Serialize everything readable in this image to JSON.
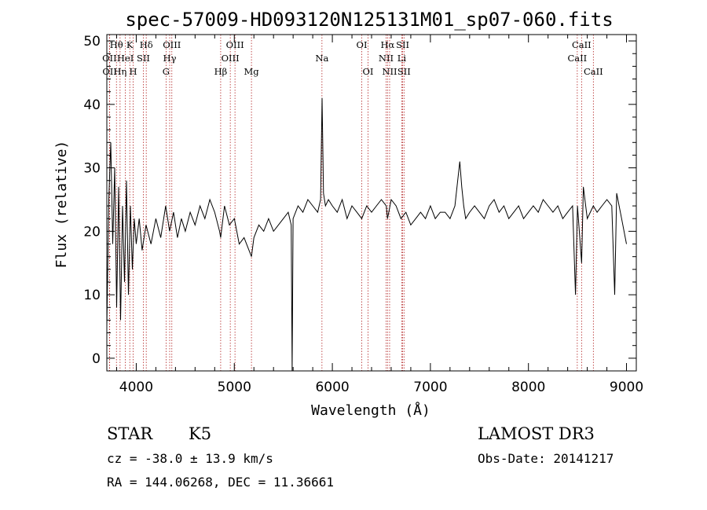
{
  "chart_data": {
    "type": "line",
    "title": "spec-57009-HD093120N125131M01_sp07-060.fits",
    "xlabel": "Wavelength (Å)",
    "ylabel": "Flux (relative)",
    "xlim": [
      3700,
      9100
    ],
    "ylim": [
      -2,
      51
    ],
    "xticks": [
      4000,
      5000,
      6000,
      7000,
      8000,
      9000
    ],
    "yticks": [
      0,
      10,
      20,
      30,
      40,
      50
    ],
    "series": [
      {
        "name": "flux",
        "x": [
          3700,
          3720,
          3740,
          3760,
          3780,
          3800,
          3820,
          3840,
          3860,
          3880,
          3900,
          3920,
          3940,
          3960,
          3980,
          4000,
          4030,
          4060,
          4100,
          4150,
          4200,
          4250,
          4300,
          4340,
          4380,
          4420,
          4460,
          4500,
          4550,
          4600,
          4650,
          4700,
          4750,
          4800,
          4850,
          4861,
          4900,
          4950,
          5000,
          5050,
          5100,
          5150,
          5175,
          5200,
          5250,
          5300,
          5350,
          5400,
          5450,
          5500,
          5550,
          5580,
          5590,
          5600,
          5650,
          5700,
          5750,
          5800,
          5850,
          5880,
          5895,
          5910,
          5930,
          5960,
          6000,
          6050,
          6100,
          6150,
          6200,
          6250,
          6300,
          6350,
          6400,
          6450,
          6500,
          6550,
          6563,
          6600,
          6650,
          6700,
          6750,
          6800,
          6850,
          6900,
          6950,
          7000,
          7050,
          7100,
          7150,
          7200,
          7250,
          7300,
          7320,
          7340,
          7360,
          7400,
          7450,
          7500,
          7550,
          7600,
          7650,
          7700,
          7750,
          7800,
          7850,
          7900,
          7950,
          8000,
          8050,
          8100,
          8150,
          8200,
          8250,
          8300,
          8350,
          8400,
          8450,
          8480,
          8500,
          8542,
          8560,
          8600,
          8662,
          8700,
          8750,
          8800,
          8850,
          8880,
          8900,
          8950,
          9000
        ],
        "y": [
          5,
          25,
          34,
          18,
          30,
          8,
          27,
          6,
          24,
          12,
          28,
          10,
          24,
          14,
          22,
          18,
          22,
          17,
          21,
          18,
          22,
          19,
          24,
          20,
          23,
          19,
          22,
          20,
          23,
          21,
          24,
          22,
          25,
          23,
          20,
          19,
          24,
          21,
          22,
          18,
          19,
          17,
          16,
          19,
          21,
          20,
          22,
          20,
          21,
          22,
          23,
          21,
          -3,
          22,
          24,
          23,
          25,
          24,
          23,
          25,
          41,
          26,
          24,
          25,
          24,
          23,
          25,
          22,
          24,
          23,
          22,
          24,
          23,
          24,
          25,
          24,
          22,
          25,
          24,
          22,
          23,
          21,
          22,
          23,
          22,
          24,
          22,
          23,
          23,
          22,
          24,
          31,
          27,
          24,
          22,
          23,
          24,
          23,
          22,
          24,
          25,
          23,
          24,
          22,
          23,
          24,
          22,
          23,
          24,
          23,
          25,
          24,
          23,
          24,
          22,
          23,
          24,
          10,
          24,
          15,
          27,
          22,
          24,
          23,
          24,
          25,
          24,
          10,
          26,
          22,
          18
        ]
      }
    ],
    "spectral_lines": [
      {
        "label": "OII",
        "x": 3727,
        "row": 2
      },
      {
        "label": "OII",
        "x": 3729,
        "row": 3
      },
      {
        "label": "Hθ",
        "x": 3798,
        "row": 1
      },
      {
        "label": "Hη",
        "x": 3835,
        "row": 3
      },
      {
        "label": "HeI",
        "x": 3889,
        "row": 2
      },
      {
        "label": "K",
        "x": 3934,
        "row": 1
      },
      {
        "label": "H",
        "x": 3969,
        "row": 3
      },
      {
        "label": "SII",
        "x": 4072,
        "row": 2
      },
      {
        "label": "Hδ",
        "x": 4102,
        "row": 1
      },
      {
        "label": "G",
        "x": 4304,
        "row": 3
      },
      {
        "label": "Hγ",
        "x": 4341,
        "row": 2
      },
      {
        "label": "OIII",
        "x": 4363,
        "row": 1
      },
      {
        "label": "Hβ",
        "x": 4861,
        "row": 3
      },
      {
        "label": "OIII",
        "x": 4959,
        "row": 2
      },
      {
        "label": "OIII",
        "x": 5007,
        "row": 1
      },
      {
        "label": "Mg",
        "x": 5175,
        "row": 3
      },
      {
        "label": "Na",
        "x": 5894,
        "row": 2
      },
      {
        "label": "OI",
        "x": 6300,
        "row": 1
      },
      {
        "label": "OI",
        "x": 6364,
        "row": 3
      },
      {
        "label": "NII",
        "x": 6548,
        "row": 2
      },
      {
        "label": "Hα",
        "x": 6563,
        "row": 1
      },
      {
        "label": "NII",
        "x": 6584,
        "row": 3
      },
      {
        "label": "SII",
        "x": 6717,
        "row": 1
      },
      {
        "label": "Li",
        "x": 6708,
        "row": 2
      },
      {
        "label": "SII",
        "x": 6731,
        "row": 3
      },
      {
        "label": "CaII",
        "x": 8498,
        "row": 2
      },
      {
        "label": "CaII",
        "x": 8542,
        "row": 1
      },
      {
        "label": "CaII",
        "x": 8662,
        "row": 3
      }
    ]
  },
  "info": {
    "class": "STAR",
    "subclass": "K5",
    "survey": "LAMOST DR3",
    "cz": "cz = -38.0 ± 13.9 km/s",
    "obs_date": "Obs-Date: 20141217",
    "coords": "RA = 144.06268, DEC =  11.36661"
  }
}
